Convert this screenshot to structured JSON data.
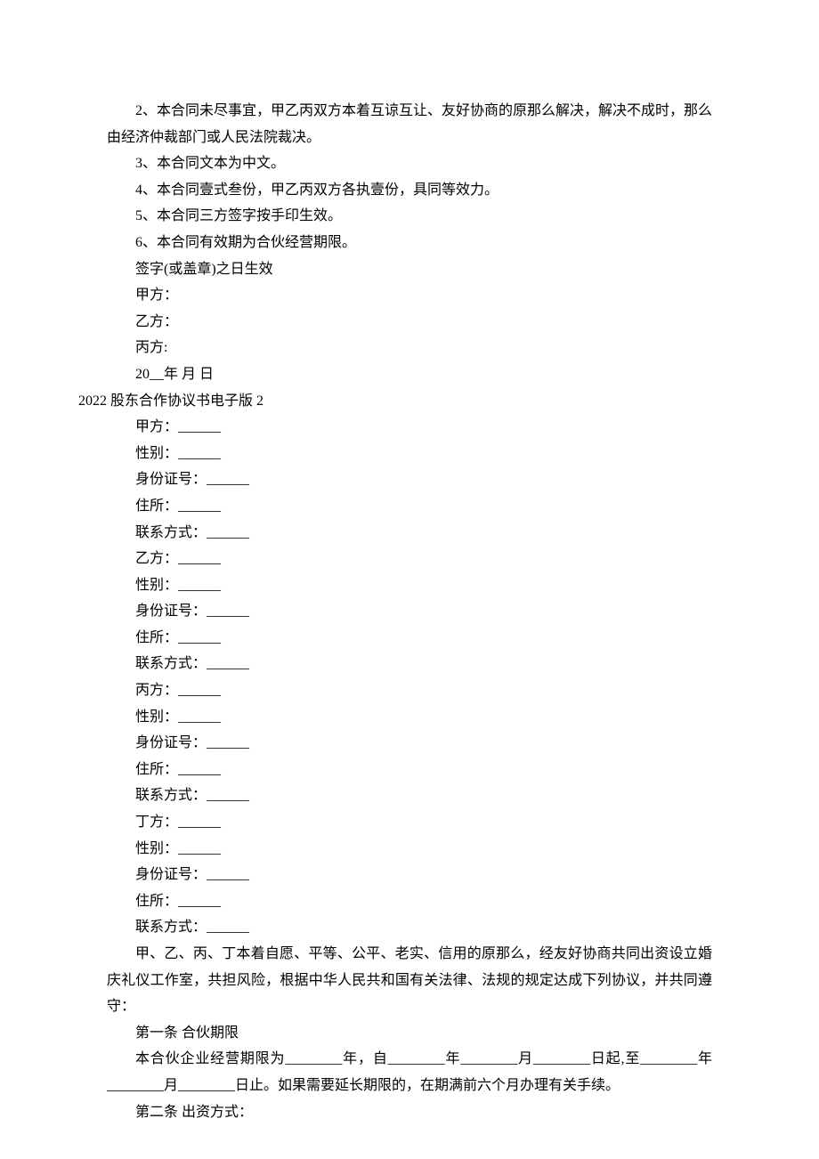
{
  "page": {
    "background_color": "#ffffff",
    "text_color": "#000000",
    "font_family": "SimSun",
    "font_size": 16,
    "line_height": 1.85
  },
  "clauses": {
    "item2": "2、本合同未尽事宜，甲乙丙双方本着互谅互让、友好协商的原那么解决，解决不成时，那么由经济仲裁部门或人民法院裁决。",
    "item3": "3、本合同文本为中文。",
    "item4": "4、本合同壹式叁份，甲乙丙双方各执壹份，具同等效力。",
    "item5": "5、本合同三方签字按手印生效。",
    "item6": "6、本合同有效期为合伙经营期限。",
    "effective": "签字(或盖章)之日生效",
    "party_a": "甲方：",
    "party_b": "乙方：",
    "party_c": "丙方:",
    "date": "20__年  月  日"
  },
  "section2_title": "2022 股东合作协议书电子版 2",
  "form": {
    "a_name": "甲方：______",
    "a_gender": "性别：______",
    "a_id": "身份证号：______",
    "a_addr": "住所：______",
    "a_contact": "联系方式：______",
    "b_name": "乙方：______",
    "b_gender": "性别：______",
    "b_id": "身份证号：______",
    "b_addr": "住所：______",
    "b_contact": "联系方式：______",
    "c_name": "丙方：______",
    "c_gender": "性别：______",
    "c_id": "身份证号：______",
    "c_addr": "住所：______",
    "c_contact": "联系方式：______",
    "d_name": "丁方：______",
    "d_gender": "性别：______",
    "d_id": "身份证号：______",
    "d_addr": "住所：______",
    "d_contact": "联系方式：______"
  },
  "preamble": "甲、乙、丙、丁本着自愿、平等、公平、老实、信用的原那么，经友好协商共同出资设立婚庆礼仪工作室，共担风险，根据中华人民共和国有关法律、法规的规定达成下列协议，并共同遵守：",
  "article1": {
    "title": "第一条  合伙期限",
    "body": "本合伙企业经营期限为________年，自________年________月________日起,至________年________月________日止。如果需要延长期限的，在期满前六个月办理有关手续。"
  },
  "article2": {
    "title": "第二条  出资方式："
  }
}
